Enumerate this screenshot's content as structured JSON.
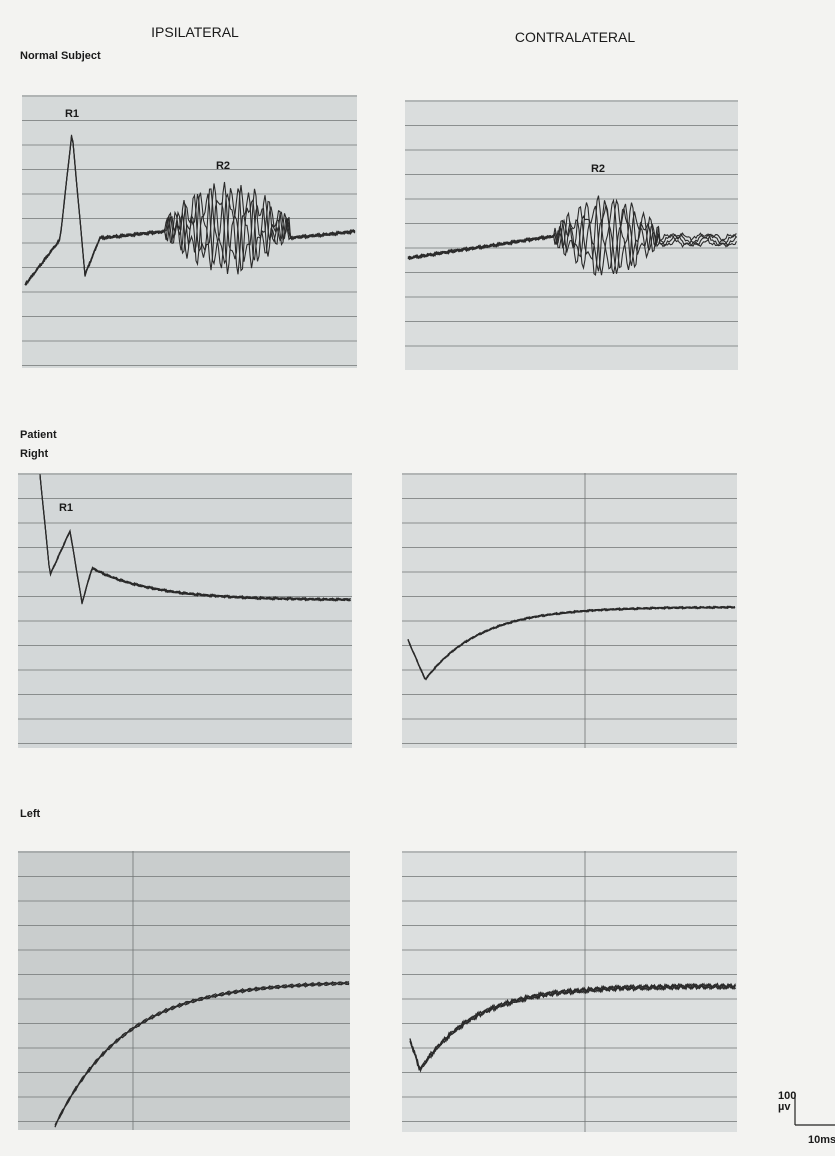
{
  "headers": {
    "ipsilateral": "IPSILATERAL",
    "contralateral": "CONTRALATERAL"
  },
  "labels": {
    "normal": "Normal Subject",
    "patient": "Patient",
    "right": "Right",
    "left": "Left"
  },
  "annotations": [
    "R1",
    "R2",
    "R2",
    "R1"
  ],
  "scale_bar": {
    "amplitude": "100",
    "amplitude_unit": "µv",
    "time": "10ms"
  }
}
